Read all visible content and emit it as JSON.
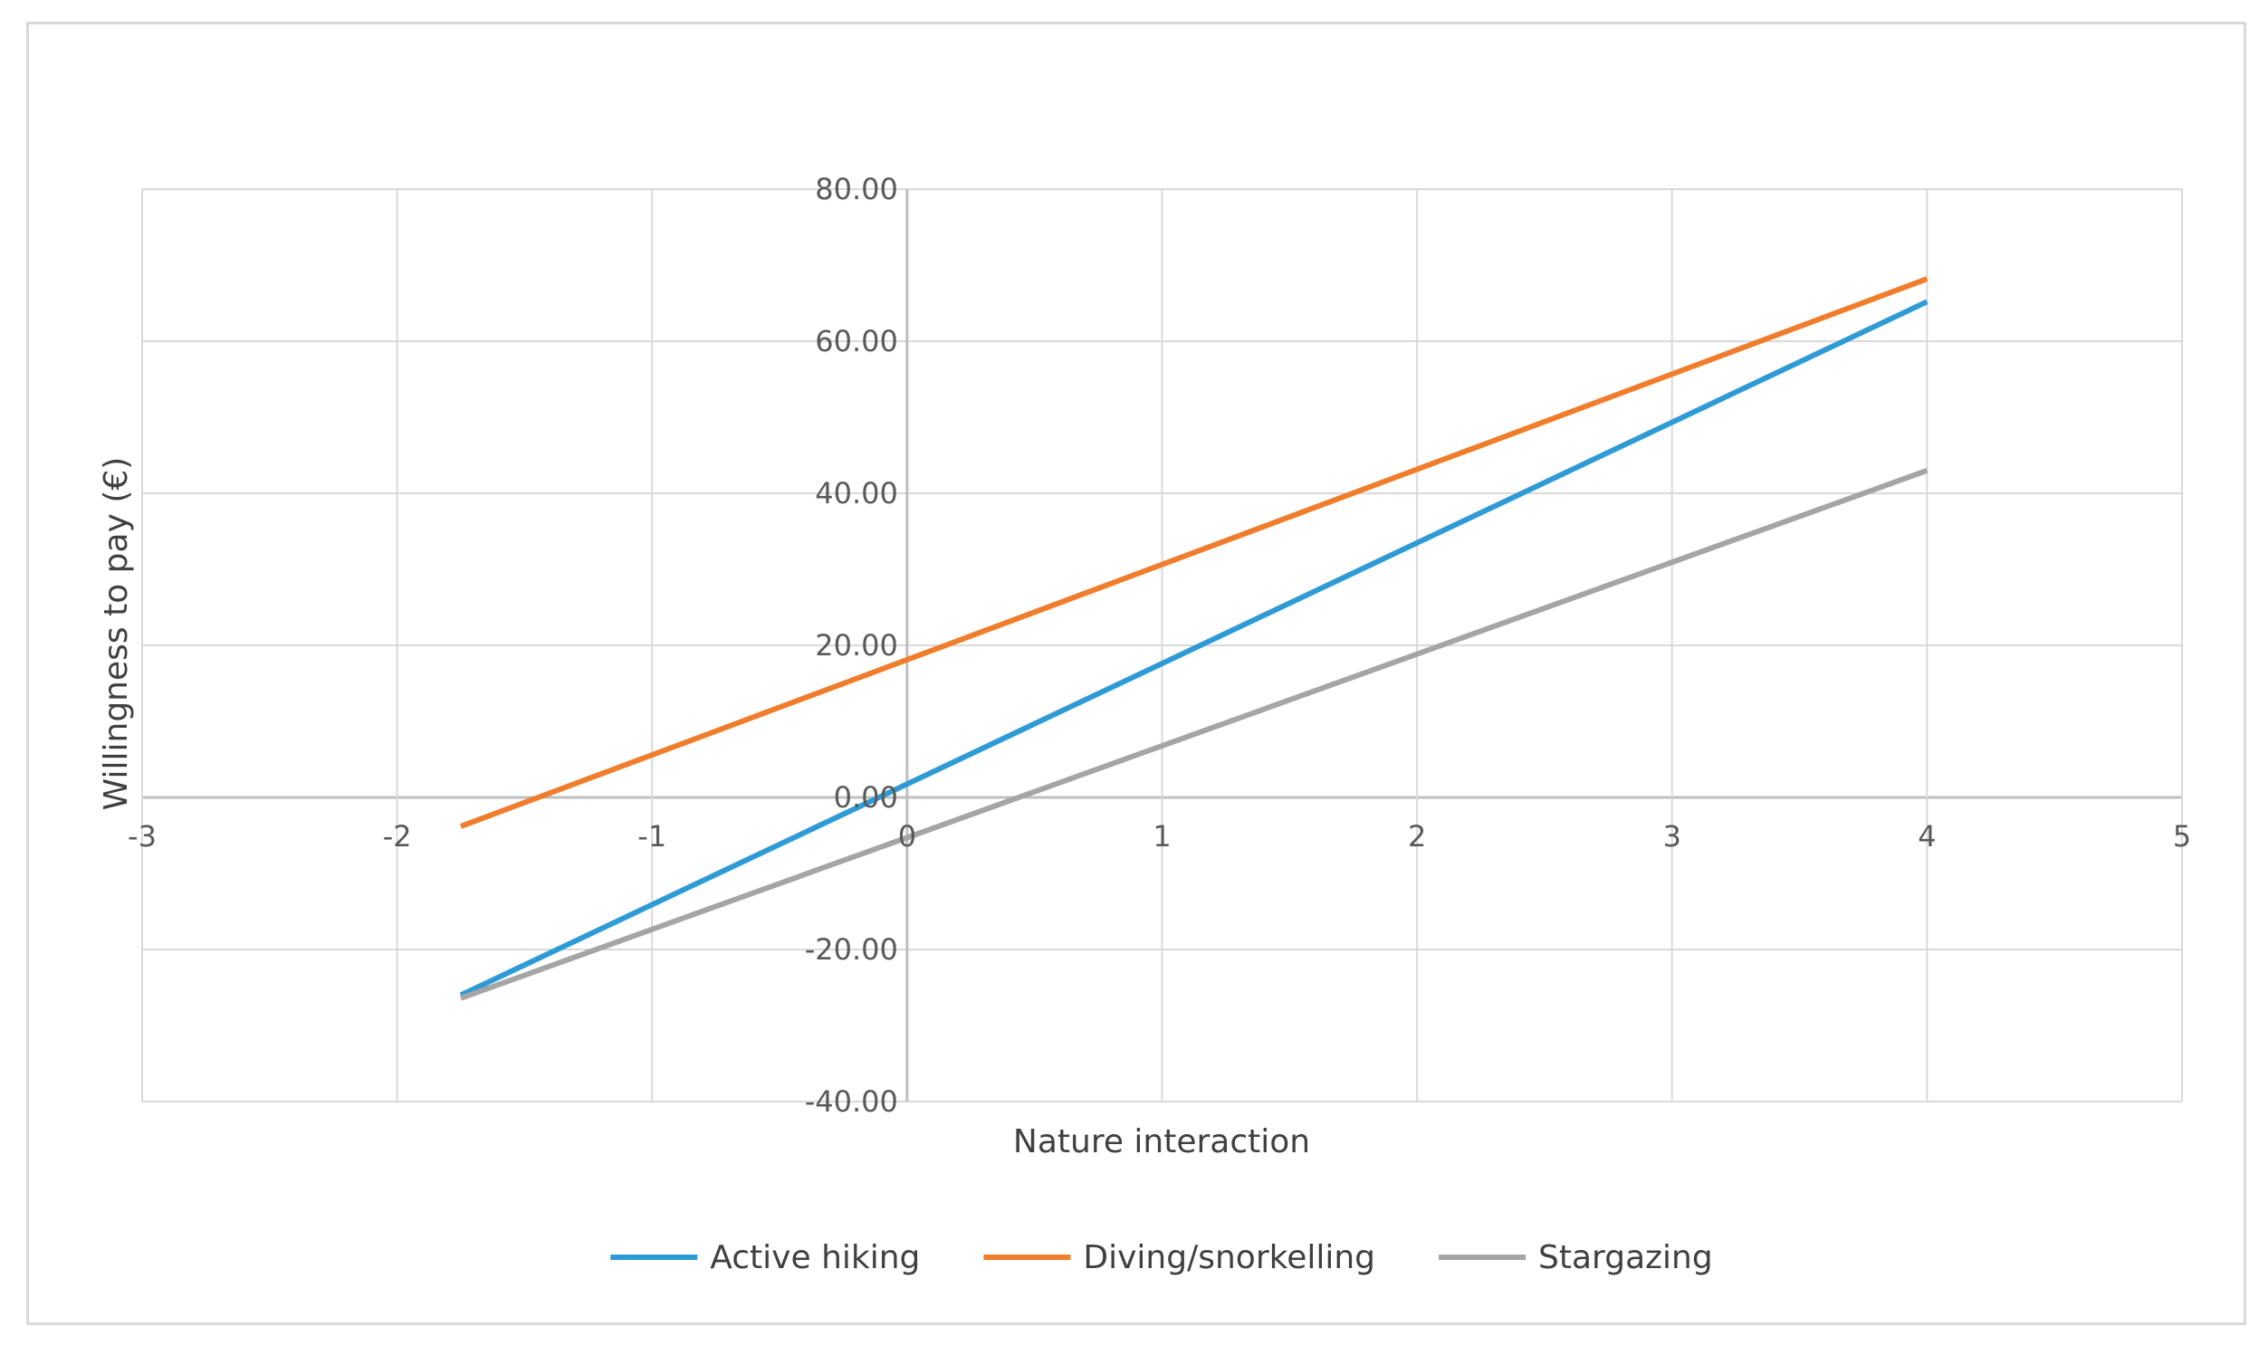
{
  "chart_data": {
    "type": "line",
    "title": "",
    "xlabel": "Nature interaction",
    "ylabel": "Willingness to pay (€)",
    "xlim": [
      -3,
      5
    ],
    "ylim": [
      -40,
      80
    ],
    "x_ticks": [
      "-3",
      "-2",
      "-1",
      "0",
      "1",
      "2",
      "3",
      "4",
      "5"
    ],
    "x_tick_values": [
      -3,
      -2,
      -1,
      0,
      1,
      2,
      3,
      4,
      5
    ],
    "y_ticks": [
      "-40.00",
      "-20.00",
      "0.00",
      "20.00",
      "40.00",
      "60.00",
      "80.00"
    ],
    "y_tick_values": [
      -40,
      -20,
      0,
      20,
      40,
      60,
      80
    ],
    "grid": true,
    "legend_position": "bottom",
    "series": [
      {
        "name": "Active hiking",
        "color": "#2e9bd6",
        "points": [
          [
            -1.75,
            -26.0
          ],
          [
            4.0,
            65.2
          ]
        ]
      },
      {
        "name": "Diving/snorkelling",
        "color": "#f07d2c",
        "points": [
          [
            -1.75,
            -3.8
          ],
          [
            4.0,
            68.2
          ]
        ]
      },
      {
        "name": "Stargazing",
        "color": "#a5a5a5",
        "points": [
          [
            -1.75,
            -26.4
          ],
          [
            4.0,
            43.0
          ]
        ]
      }
    ]
  }
}
